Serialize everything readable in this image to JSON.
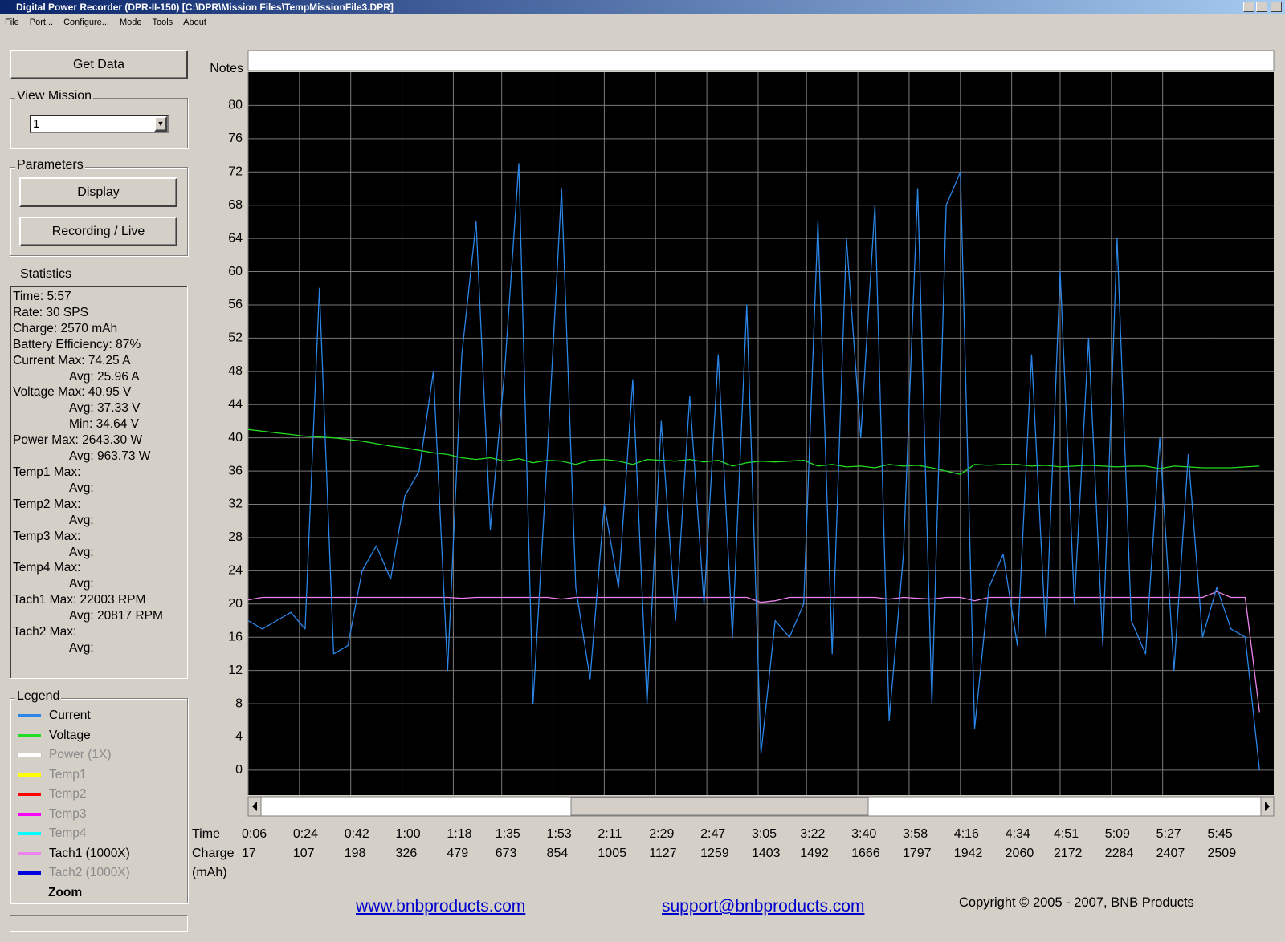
{
  "window_title": "Digital Power Recorder (DPR-II-150) [C:\\DPR\\Mission Files\\TempMissionFile3.DPR]",
  "menu": [
    "File",
    "Port...",
    "Configure...",
    "Mode",
    "Tools",
    "About"
  ],
  "get_data_button": "Get Data",
  "view_mission": {
    "label": "View Mission",
    "selected": "1"
  },
  "parameters": {
    "label": "Parameters",
    "buttons": [
      "Display",
      "Recording / Live"
    ]
  },
  "statistics": {
    "label": "Statistics",
    "lines": [
      "Time: 5:57",
      "Rate: 30 SPS",
      "Charge: 2570 mAh",
      "Battery Efficiency: 87%",
      "Current Max: 74.25 A",
      "Avg: 25.96 A",
      "Voltage Max: 40.95 V",
      "Avg: 37.33 V",
      "Min: 34.64 V",
      "Power Max: 2643.30 W",
      "Avg: 963.73 W",
      "Temp1 Max:",
      "Avg:",
      "Temp2 Max:",
      "Avg:",
      "Temp3 Max:",
      "Avg:",
      "Temp4 Max:",
      "Avg:",
      "Tach1 Max: 22003 RPM",
      "Avg: 20817 RPM",
      "Tach2 Max:",
      "Avg:"
    ]
  },
  "legend_panel": {
    "label": "Legend",
    "zoom": "Zoom"
  },
  "notes_label": "Notes",
  "links": [
    "www.bnbproducts.com",
    "support@bnbproducts.com"
  ],
  "copyright": "Copyright © 2005 - 2007, BNB Products",
  "chart_data": {
    "type": "line",
    "background": "#000000",
    "grid": true,
    "xlabel": "Time",
    "charge_label": "Charge",
    "charge_unit": "(mAh)",
    "xlim": [
      6,
      366
    ],
    "ylim": [
      -3,
      84
    ],
    "yticks": [
      0,
      4,
      8,
      12,
      16,
      20,
      24,
      28,
      32,
      36,
      40,
      44,
      48,
      52,
      56,
      60,
      64,
      68,
      72,
      76,
      80
    ],
    "xticks": [
      {
        "value": 6,
        "label": "0:06"
      },
      {
        "value": 24,
        "label": "0:24"
      },
      {
        "value": 42,
        "label": "0:42"
      },
      {
        "value": 60,
        "label": "1:00"
      },
      {
        "value": 78,
        "label": "1:18"
      },
      {
        "value": 95,
        "label": "1:35"
      },
      {
        "value": 113,
        "label": "1:53"
      },
      {
        "value": 131,
        "label": "2:11"
      },
      {
        "value": 149,
        "label": "2:29"
      },
      {
        "value": 167,
        "label": "2:47"
      },
      {
        "value": 185,
        "label": "3:05"
      },
      {
        "value": 202,
        "label": "3:22"
      },
      {
        "value": 220,
        "label": "3:40"
      },
      {
        "value": 238,
        "label": "3:58"
      },
      {
        "value": 256,
        "label": "4:16"
      },
      {
        "value": 274,
        "label": "4:34"
      },
      {
        "value": 291,
        "label": "4:51"
      },
      {
        "value": 309,
        "label": "5:09"
      },
      {
        "value": 327,
        "label": "5:27"
      },
      {
        "value": 345,
        "label": "5:45"
      }
    ],
    "charge_ticks": [
      17,
      107,
      198,
      326,
      479,
      673,
      854,
      1005,
      1127,
      1259,
      1403,
      1492,
      1666,
      1797,
      1942,
      2060,
      2172,
      2284,
      2407,
      2509
    ],
    "x": [
      6,
      11,
      16,
      21,
      26,
      31,
      36,
      41,
      46,
      51,
      56,
      61,
      66,
      71,
      76,
      81,
      86,
      91,
      96,
      101,
      106,
      111,
      116,
      121,
      126,
      131,
      136,
      141,
      146,
      151,
      156,
      161,
      166,
      171,
      176,
      181,
      186,
      191,
      196,
      201,
      206,
      211,
      216,
      221,
      226,
      231,
      236,
      241,
      246,
      251,
      256,
      261,
      266,
      271,
      276,
      281,
      286,
      291,
      296,
      301,
      306,
      311,
      316,
      321,
      326,
      331,
      336,
      341,
      346,
      351,
      356,
      361
    ],
    "series": [
      {
        "name": "Current",
        "color": "#2b86e8",
        "values": [
          18,
          17,
          18,
          19,
          17,
          58,
          14,
          15,
          24,
          27,
          23,
          33,
          36,
          48,
          12,
          50,
          66,
          29,
          48,
          73,
          8,
          38,
          70,
          22,
          11,
          32,
          22,
          47,
          8,
          42,
          18,
          45,
          20,
          50,
          16,
          56,
          2,
          18,
          16,
          20,
          66,
          14,
          64,
          40,
          68,
          6,
          26,
          70,
          8,
          68,
          72,
          5,
          22,
          26,
          15,
          50,
          16,
          60,
          20,
          52,
          15,
          64,
          18,
          14,
          40,
          12,
          38,
          16,
          22,
          17,
          16,
          0
        ]
      },
      {
        "name": "Voltage",
        "color": "#22dd22",
        "values": [
          41,
          40.8,
          40.6,
          40.4,
          40.2,
          40.1,
          40,
          39.8,
          39.6,
          39.3,
          39,
          38.8,
          38.5,
          38.2,
          38,
          37.6,
          37.4,
          37.6,
          37.2,
          37.5,
          37,
          37.3,
          37.2,
          36.8,
          37.3,
          37.4,
          37.2,
          36.8,
          37.4,
          37.3,
          37.2,
          37.4,
          37.1,
          37.3,
          36.6,
          37,
          37.2,
          37.1,
          37.2,
          37.3,
          36.6,
          36.8,
          36.5,
          36.6,
          36.4,
          36.8,
          36.6,
          36.7,
          36.4,
          36,
          35.6,
          36.8,
          36.7,
          36.8,
          36.8,
          36.6,
          36.7,
          36.5,
          36.6,
          36.7,
          36.6,
          36.5,
          36.6,
          36.6,
          36.3,
          36.6,
          36.5,
          36.4,
          36.4,
          36.4,
          36.5,
          36.6
        ]
      },
      {
        "name": "Power (1X)",
        "color": "#ffffff"
      },
      {
        "name": "Temp1",
        "color": "#ffff00"
      },
      {
        "name": "Temp2",
        "color": "#ff0000"
      },
      {
        "name": "Temp3",
        "color": "#ff00ff"
      },
      {
        "name": "Temp4",
        "color": "#00ffff"
      },
      {
        "name": "Tach1 (1000X)",
        "color": "#ee82ee",
        "values": [
          20.5,
          20.8,
          20.8,
          20.8,
          20.8,
          20.8,
          20.8,
          20.8,
          20.8,
          20.8,
          20.8,
          20.8,
          20.8,
          20.8,
          20.8,
          20.7,
          20.8,
          20.8,
          20.8,
          20.8,
          20.8,
          20.8,
          20.6,
          20.8,
          20.8,
          20.8,
          20.8,
          20.8,
          20.8,
          20.8,
          20.8,
          20.8,
          20.8,
          20.8,
          20.8,
          20.8,
          20.2,
          20.4,
          20.8,
          20.8,
          20.8,
          20.8,
          20.8,
          20.8,
          20.8,
          20.6,
          20.8,
          20.7,
          20.6,
          20.8,
          20.8,
          20.4,
          20.8,
          20.8,
          20.8,
          20.8,
          20.8,
          20.8,
          20.8,
          20.8,
          20.8,
          20.8,
          20.8,
          20.8,
          20.8,
          20.8,
          20.8,
          20.8,
          21.5,
          20.8,
          20.8,
          7
        ]
      },
      {
        "name": "Tach2 (1000X)",
        "color": "#0000dd"
      }
    ]
  }
}
